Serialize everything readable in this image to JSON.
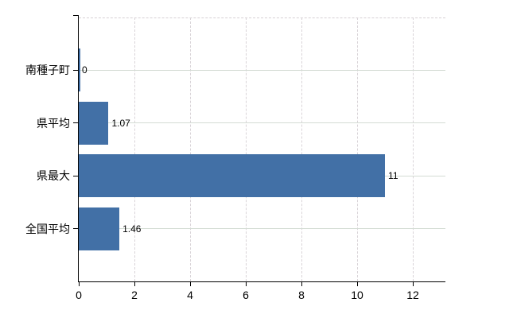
{
  "chart_data": {
    "type": "bar",
    "orientation": "horizontal",
    "title": "",
    "categories": [
      "南種子町",
      "県平均",
      "県最大",
      "全国平均"
    ],
    "values": [
      0,
      1.07,
      11,
      1.46
    ],
    "value_labels": [
      "0",
      "1.07",
      "11",
      "1.46"
    ],
    "x_ticks": [
      0,
      2,
      4,
      6,
      8,
      10,
      12
    ],
    "x_tick_labels": [
      "0",
      "2",
      "4",
      "6",
      "8",
      "10",
      "12"
    ],
    "xlim": [
      0,
      13.17
    ],
    "grid": true,
    "legend": "none"
  },
  "colors": {
    "bar": "#4270a6",
    "axis": "#000000",
    "gridline_horizontal": "#d4dcd4",
    "gridline_vertical": "#d9d4d8",
    "background": "#ffffff",
    "text": "#000000"
  }
}
